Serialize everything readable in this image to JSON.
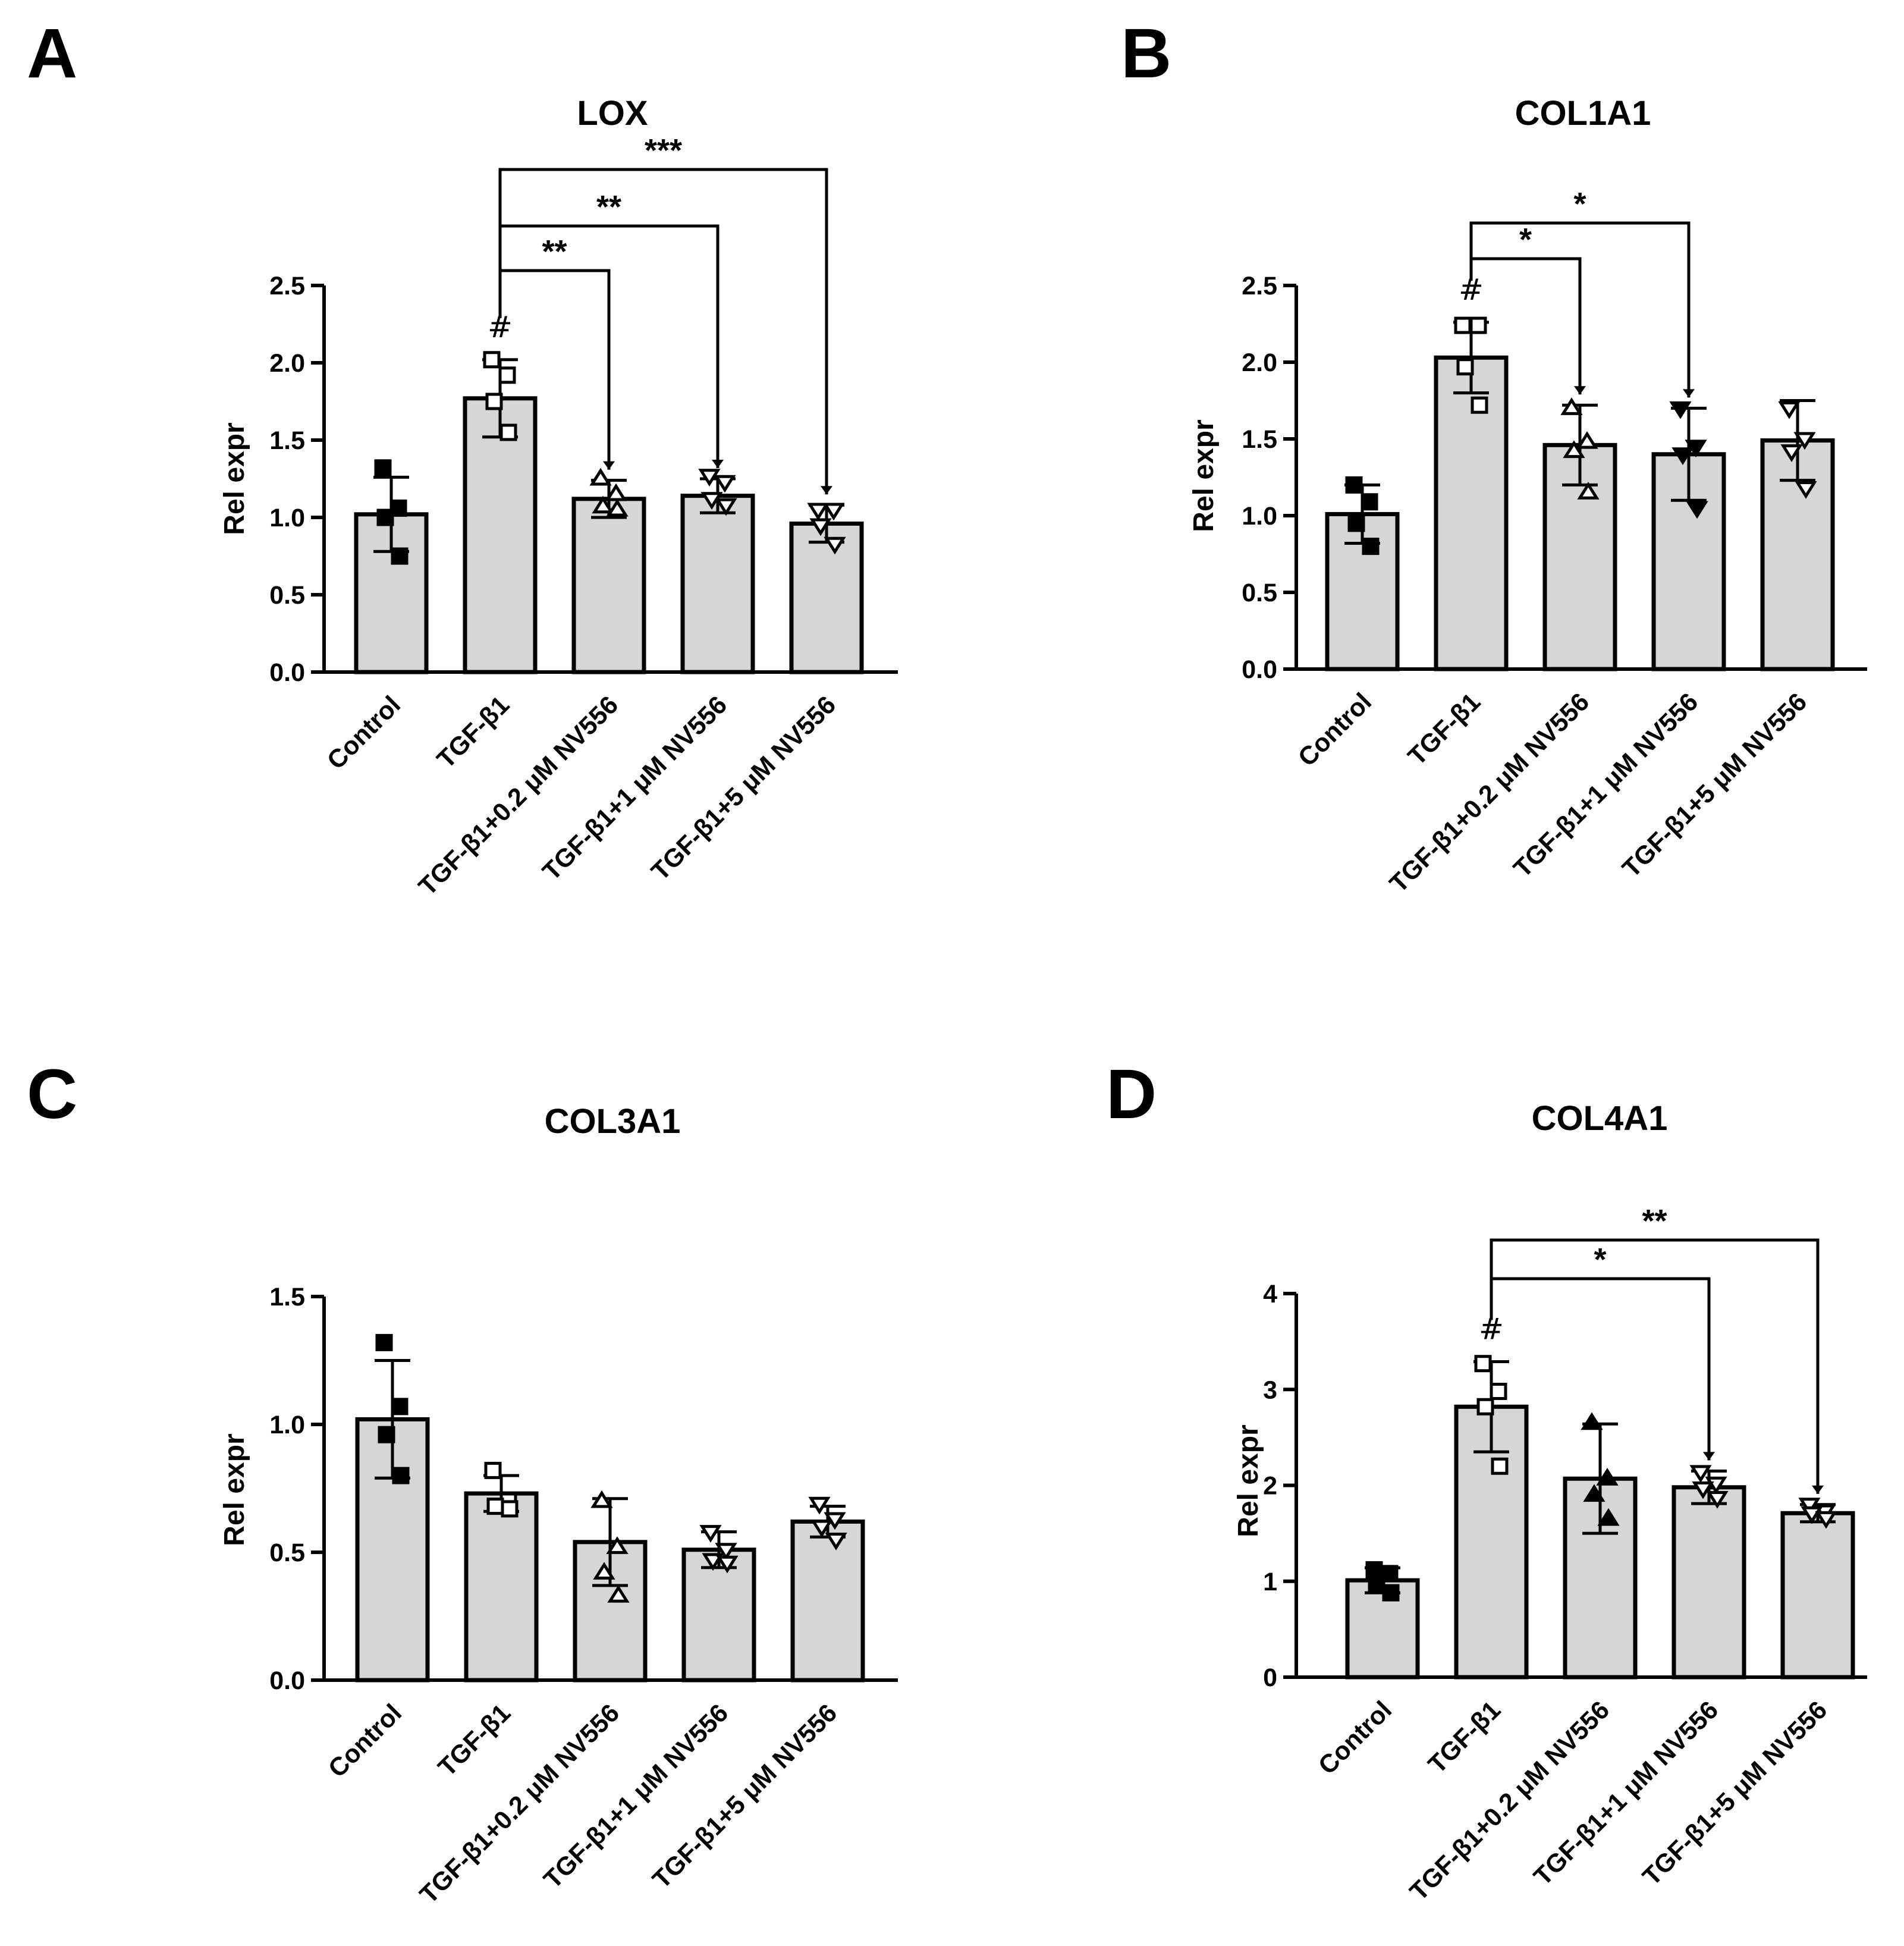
{
  "chart_data": [
    {
      "type": "bar",
      "panel": "A",
      "title": "LOX",
      "ylabel": "Rel expr",
      "xlabel": "",
      "ylim": [
        0,
        2.5
      ],
      "yticks": [
        "0.0",
        "0.5",
        "1.0",
        "1.5",
        "2.0",
        "2.5"
      ],
      "categories": [
        "Control",
        "TGF-β1",
        "TGF-β1+0.2 μM NV556",
        "TGF-β1+1 μM NV556",
        "TGF-β1+5 μM NV556"
      ],
      "values": [
        1.02,
        1.77,
        1.12,
        1.14,
        0.96
      ],
      "errors": [
        0.24,
        0.25,
        0.12,
        0.11,
        0.12
      ],
      "points": [
        [
          1.32,
          1.06,
          1.0,
          0.75
        ],
        [
          2.02,
          1.92,
          1.75,
          1.55
        ],
        [
          1.25,
          1.15,
          1.07,
          1.05
        ],
        [
          1.27,
          1.23,
          1.12,
          1.08
        ],
        [
          1.05,
          1.05,
          0.95,
          0.83
        ]
      ],
      "markers": [
        "square-filled",
        "square-open",
        "triangle-up-open",
        "triangle-down-open",
        "triangle-down-open"
      ],
      "hash_over": [
        1
      ],
      "comparisons": [
        {
          "from": 1,
          "to": 2,
          "label": "**"
        },
        {
          "from": 1,
          "to": 3,
          "label": "**"
        },
        {
          "from": 1,
          "to": 4,
          "label": "***"
        }
      ]
    },
    {
      "type": "bar",
      "panel": "B",
      "title": "COL1A1",
      "ylabel": "Rel expr",
      "xlabel": "",
      "ylim": [
        0,
        2.5
      ],
      "yticks": [
        "0.0",
        "0.5",
        "1.0",
        "1.5",
        "2.0",
        "2.5"
      ],
      "categories": [
        "Control",
        "TGF-β1",
        "TGF-β1+0.2 μM NV556",
        "TGF-β1+1 μM NV556",
        "TGF-β1+5 μM NV556"
      ],
      "values": [
        1.01,
        2.03,
        1.46,
        1.4,
        1.49
      ],
      "errors": [
        0.19,
        0.23,
        0.26,
        0.3,
        0.26
      ],
      "points": [
        [
          1.2,
          1.09,
          0.95,
          0.8
        ],
        [
          2.24,
          2.24,
          1.97,
          1.72
        ],
        [
          1.7,
          1.48,
          1.42,
          1.15
        ],
        [
          1.7,
          1.45,
          1.4,
          1.05
        ],
        [
          1.7,
          1.5,
          1.42,
          1.18
        ]
      ],
      "markers": [
        "square-filled",
        "square-open",
        "triangle-up-open",
        "triangle-down-filled",
        "triangle-down-open"
      ],
      "hash_over": [
        1
      ],
      "comparisons": [
        {
          "from": 1,
          "to": 2,
          "label": "*"
        },
        {
          "from": 1,
          "to": 3,
          "label": "*"
        }
      ]
    },
    {
      "type": "bar",
      "panel": "C",
      "title": "COL3A1",
      "ylabel": "Rel expr",
      "xlabel": "",
      "ylim": [
        0,
        1.5
      ],
      "yticks": [
        "0.0",
        "0.5",
        "1.0",
        "1.5"
      ],
      "categories": [
        "Control",
        "TGF-β1",
        "TGF-β1+0.2 μM NV556",
        "TGF-β1+1 μM NV556",
        "TGF-β1+5 μM NV556"
      ],
      "values": [
        1.02,
        0.73,
        0.54,
        0.51,
        0.62
      ],
      "errors": [
        0.23,
        0.07,
        0.17,
        0.07,
        0.06
      ],
      "points": [
        [
          1.32,
          1.07,
          0.96,
          0.8
        ],
        [
          0.82,
          0.7,
          0.68,
          0.67
        ],
        [
          0.7,
          0.52,
          0.42,
          0.33
        ],
        [
          0.58,
          0.51,
          0.47,
          0.46
        ],
        [
          0.69,
          0.63,
          0.6,
          0.55
        ]
      ],
      "markers": [
        "square-filled",
        "square-open",
        "triangle-up-open",
        "triangle-down-open",
        "triangle-down-open"
      ],
      "hash_over": [],
      "comparisons": []
    },
    {
      "type": "bar",
      "panel": "D",
      "title": "COL4A1",
      "ylabel": "Rel expr",
      "xlabel": "",
      "ylim": [
        0,
        4
      ],
      "yticks": [
        "0",
        "1",
        "2",
        "3",
        "4"
      ],
      "categories": [
        "Control",
        "TGF-β1",
        "TGF-β1+0.2 μM NV556",
        "TGF-β1+1 μM NV556",
        "TGF-β1+5 μM NV556"
      ],
      "values": [
        1.01,
        2.82,
        2.07,
        1.98,
        1.71
      ],
      "errors": [
        0.13,
        0.47,
        0.57,
        0.17,
        0.09
      ],
      "points": [
        [
          1.12,
          1.08,
          0.98,
          0.88
        ],
        [
          3.27,
          2.98,
          2.82,
          2.2
        ],
        [
          2.65,
          2.07,
          1.9,
          1.65
        ],
        [
          2.14,
          2.02,
          1.97,
          1.87
        ],
        [
          1.8,
          1.73,
          1.71,
          1.66
        ]
      ],
      "markers": [
        "square-filled",
        "square-open",
        "triangle-up-filled",
        "triangle-down-open",
        "triangle-down-open"
      ],
      "hash_over": [
        1
      ],
      "comparisons": [
        {
          "from": 1,
          "to": 3,
          "label": "*"
        },
        {
          "from": 1,
          "to": 4,
          "label": "**"
        }
      ]
    }
  ],
  "significance_marker": "#",
  "colors": {
    "bar_fill": "#d6d6d6",
    "ink": "#000000",
    "background": "#ffffff"
  }
}
